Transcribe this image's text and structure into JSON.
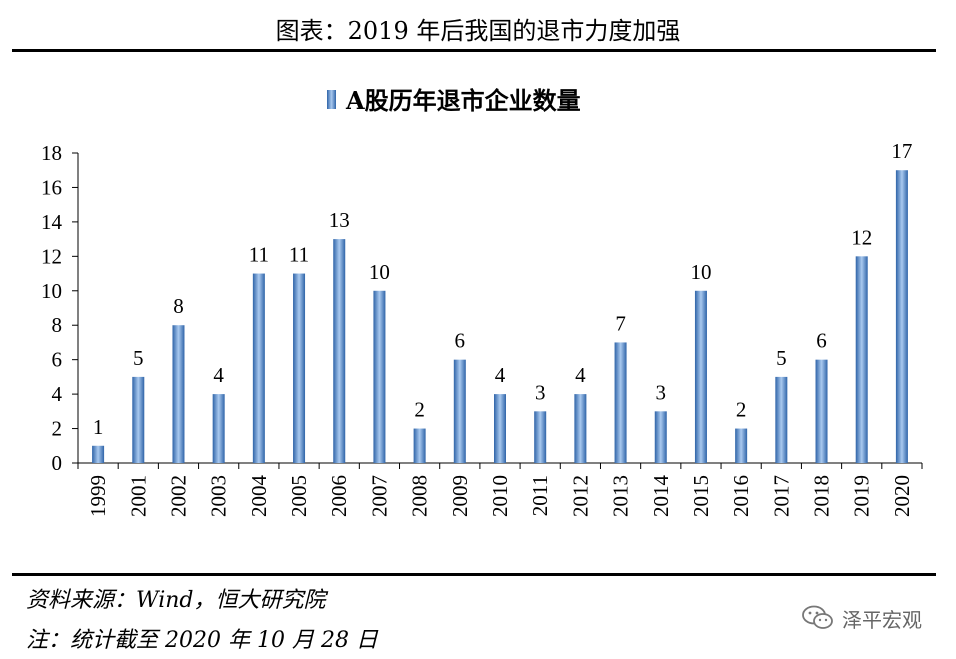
{
  "figure_title": "图表：2019 年后我国的退市力度加强",
  "source_note": "资料来源：Wind，恒大研究院",
  "date_note": "注：统计截至 2020 年 10 月 28 日",
  "watermark": "泽平宏观",
  "colors": {
    "bar": "#4f86c6",
    "bar_light": "#a9c9ef",
    "bar_dark": "#2f64a8",
    "axis": "#000000"
  },
  "chart_data": {
    "type": "bar",
    "title": "",
    "xlabel": "",
    "ylabel": "",
    "ylim": [
      0,
      18
    ],
    "y_ticks": [
      0,
      2,
      4,
      6,
      8,
      10,
      12,
      14,
      16,
      18
    ],
    "grid": false,
    "legend": {
      "position": "top-center",
      "entries": [
        "A股历年退市企业数量"
      ]
    },
    "categories": [
      "1999",
      "2001",
      "2002",
      "2003",
      "2004",
      "2005",
      "2006",
      "2007",
      "2008",
      "2009",
      "2010",
      "2011",
      "2012",
      "2013",
      "2014",
      "2015",
      "2016",
      "2017",
      "2018",
      "2019",
      "2020"
    ],
    "series": [
      {
        "name": "A股历年退市企业数量",
        "values": [
          1,
          5,
          8,
          4,
          11,
          11,
          13,
          10,
          2,
          6,
          4,
          3,
          4,
          7,
          3,
          10,
          2,
          5,
          6,
          12,
          17
        ]
      }
    ]
  }
}
